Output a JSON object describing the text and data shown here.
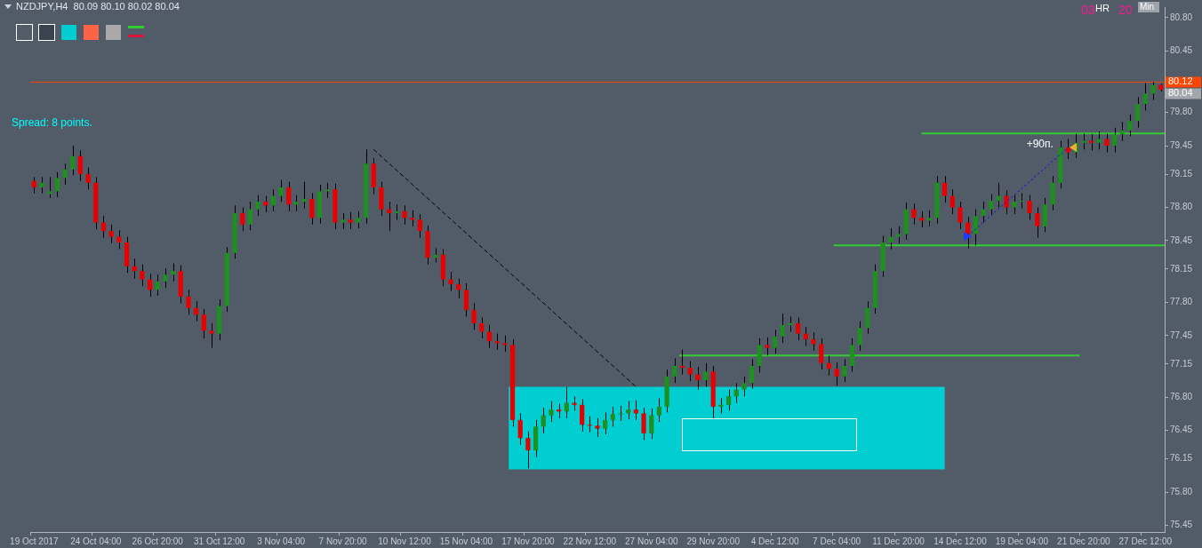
{
  "chart_data": {
    "type": "candlestick",
    "title": "NZDJPY,H4  80.09 80.10 80.02 80.04",
    "categories": [
      "19 Oct 2017",
      null,
      null,
      null,
      null,
      null,
      null,
      null,
      "24 Oct 04:00",
      null,
      null,
      null,
      null,
      null,
      null,
      null,
      "26 Oct 20:00",
      null,
      null,
      null,
      null,
      null,
      null,
      null,
      "31 Oct 12:00",
      null,
      null,
      null,
      null,
      null,
      null,
      null,
      "3 Nov 04:00",
      null,
      null,
      null,
      null,
      null,
      null,
      null,
      "7 Nov 20:00",
      null,
      null,
      null,
      null,
      null,
      null,
      null,
      "10 Nov 12:00",
      null,
      null,
      null,
      null,
      null,
      null,
      null,
      "15 Nov 04:00",
      null,
      null,
      null,
      null,
      null,
      null,
      null,
      "17 Nov 20:00",
      null,
      null,
      null,
      null,
      null,
      null,
      null,
      "22 Nov 12:00",
      null,
      null,
      null,
      null,
      null,
      null,
      null,
      "27 Nov 04:00",
      null,
      null,
      null,
      null,
      null,
      null,
      null,
      "29 Nov 20:00",
      null,
      null,
      null,
      null,
      null,
      null,
      null,
      "4 Dec 12:00",
      null,
      null,
      null,
      null,
      null,
      null,
      null,
      "7 Dec 04:00",
      null,
      null,
      null,
      null,
      null,
      null,
      null,
      "11 Dec 20:00",
      null,
      null,
      null,
      null,
      null,
      null,
      null,
      "14 Dec 12:00",
      null,
      null,
      null,
      null,
      null,
      null,
      null,
      "19 Dec 04:00",
      null,
      null,
      null,
      null,
      null,
      null,
      null,
      "21 Dec 20:00",
      null,
      null,
      null,
      null,
      null,
      null,
      null,
      "27 Dec 12:00",
      null,
      null
    ],
    "ohlc": [
      [
        79.08,
        79.12,
        78.95,
        79.01
      ],
      [
        79.01,
        79.12,
        78.95,
        79.06
      ],
      [
        78.94,
        79.12,
        78.9,
        78.97
      ],
      [
        78.97,
        79.17,
        78.91,
        79.11
      ],
      [
        79.11,
        79.26,
        79.04,
        79.2
      ],
      [
        79.2,
        79.45,
        79.14,
        79.34
      ],
      [
        79.34,
        79.4,
        79.08,
        79.15
      ],
      [
        79.15,
        79.22,
        78.99,
        79.06
      ],
      [
        79.06,
        79.12,
        78.57,
        78.64
      ],
      [
        78.64,
        78.71,
        78.48,
        78.55
      ],
      [
        78.55,
        78.62,
        78.42,
        78.49
      ],
      [
        78.49,
        78.56,
        78.36,
        78.43
      ],
      [
        78.43,
        78.49,
        78.11,
        78.18
      ],
      [
        78.18,
        78.26,
        78.05,
        78.13
      ],
      [
        78.13,
        78.2,
        77.97,
        78.04
      ],
      [
        78.04,
        78.1,
        77.86,
        77.93
      ],
      [
        77.93,
        78.09,
        77.87,
        78.02
      ],
      [
        78.02,
        78.16,
        77.95,
        78.09
      ],
      [
        78.09,
        78.21,
        78.02,
        78.13
      ],
      [
        78.13,
        78.19,
        77.79,
        77.86
      ],
      [
        77.86,
        77.93,
        77.67,
        77.74
      ],
      [
        77.74,
        77.81,
        77.6,
        77.67
      ],
      [
        77.67,
        77.73,
        77.42,
        77.5
      ],
      [
        77.5,
        77.58,
        77.32,
        77.47
      ],
      [
        77.47,
        77.83,
        77.4,
        77.76
      ],
      [
        77.76,
        78.38,
        77.7,
        78.32
      ],
      [
        78.32,
        78.82,
        78.26,
        78.74
      ],
      [
        78.74,
        78.8,
        78.55,
        78.62
      ],
      [
        78.62,
        78.86,
        78.56,
        78.78
      ],
      [
        78.78,
        78.93,
        78.71,
        78.86
      ],
      [
        78.86,
        78.92,
        78.75,
        78.82
      ],
      [
        78.82,
        78.99,
        78.76,
        78.92
      ],
      [
        78.92,
        79.09,
        78.86,
        79.01
      ],
      [
        79.01,
        79.07,
        78.76,
        78.83
      ],
      [
        78.83,
        78.93,
        78.76,
        78.86
      ],
      [
        78.86,
        79.07,
        78.79,
        78.89
      ],
      [
        78.89,
        78.95,
        78.62,
        78.69
      ],
      [
        78.69,
        79.04,
        78.63,
        78.97
      ],
      [
        78.97,
        79.06,
        78.9,
        78.99
      ],
      [
        78.99,
        79.05,
        78.57,
        78.64
      ],
      [
        78.64,
        78.74,
        78.57,
        78.67
      ],
      [
        78.67,
        78.75,
        78.57,
        78.64
      ],
      [
        78.64,
        78.76,
        78.58,
        78.69
      ],
      [
        78.69,
        79.41,
        78.63,
        79.26
      ],
      [
        79.26,
        79.32,
        78.94,
        79.01
      ],
      [
        79.01,
        79.07,
        78.71,
        78.78
      ],
      [
        78.78,
        78.86,
        78.55,
        78.74
      ],
      [
        78.74,
        78.83,
        78.67,
        78.76
      ],
      [
        78.76,
        78.82,
        78.62,
        78.69
      ],
      [
        78.69,
        78.77,
        78.6,
        78.67
      ],
      [
        78.67,
        78.73,
        78.48,
        78.55
      ],
      [
        78.55,
        78.61,
        78.2,
        78.27
      ],
      [
        78.27,
        78.37,
        78.22,
        78.3
      ],
      [
        78.3,
        78.36,
        77.97,
        78.04
      ],
      [
        78.04,
        78.12,
        77.92,
        77.99
      ],
      [
        77.99,
        78.05,
        77.84,
        77.93
      ],
      [
        77.93,
        78.0,
        77.65,
        77.72
      ],
      [
        77.72,
        77.79,
        77.51,
        77.58
      ],
      [
        77.58,
        77.64,
        77.42,
        77.49
      ],
      [
        77.49,
        77.56,
        77.32,
        77.39
      ],
      [
        77.39,
        77.47,
        77.3,
        77.37
      ],
      [
        77.37,
        77.45,
        77.28,
        77.35
      ],
      [
        77.35,
        77.41,
        76.49,
        76.56
      ],
      [
        76.56,
        76.63,
        76.3,
        76.37
      ],
      [
        76.37,
        76.44,
        76.05,
        76.24
      ],
      [
        76.24,
        76.56,
        76.17,
        76.49
      ],
      [
        76.49,
        76.69,
        76.42,
        76.61
      ],
      [
        76.61,
        76.76,
        76.54,
        76.67
      ],
      [
        76.67,
        76.73,
        76.58,
        76.65
      ],
      [
        76.65,
        76.91,
        76.58,
        76.74
      ],
      [
        76.74,
        76.81,
        76.66,
        76.72
      ],
      [
        76.72,
        76.78,
        76.44,
        76.51
      ],
      [
        76.51,
        76.6,
        76.43,
        76.5
      ],
      [
        76.5,
        76.58,
        76.38,
        76.47
      ],
      [
        76.47,
        76.64,
        76.41,
        76.56
      ],
      [
        76.56,
        76.7,
        76.49,
        76.62
      ],
      [
        76.62,
        76.71,
        76.55,
        76.63
      ],
      [
        76.63,
        76.76,
        76.57,
        76.67
      ],
      [
        76.67,
        76.77,
        76.56,
        76.63
      ],
      [
        76.63,
        76.69,
        76.35,
        76.42
      ],
      [
        76.42,
        76.68,
        76.36,
        76.61
      ],
      [
        76.61,
        76.79,
        76.54,
        76.7
      ],
      [
        76.7,
        77.09,
        76.64,
        77.02
      ],
      [
        77.02,
        77.21,
        76.95,
        77.13
      ],
      [
        77.13,
        77.3,
        77.04,
        77.11
      ],
      [
        77.11,
        77.18,
        76.97,
        77.04
      ],
      [
        77.04,
        77.12,
        76.88,
        76.98
      ],
      [
        76.98,
        77.16,
        76.91,
        77.07
      ],
      [
        77.07,
        77.13,
        76.58,
        76.7
      ],
      [
        76.7,
        76.79,
        76.63,
        76.72
      ],
      [
        76.72,
        76.88,
        76.66,
        76.81
      ],
      [
        76.81,
        76.95,
        76.74,
        76.88
      ],
      [
        76.88,
        77.02,
        76.81,
        76.95
      ],
      [
        76.95,
        77.2,
        76.89,
        77.13
      ],
      [
        77.13,
        77.42,
        77.06,
        77.35
      ],
      [
        77.35,
        77.43,
        77.24,
        77.32
      ],
      [
        77.32,
        77.51,
        77.26,
        77.44
      ],
      [
        77.44,
        77.68,
        77.37,
        77.56
      ],
      [
        77.56,
        77.65,
        77.49,
        77.58
      ],
      [
        77.58,
        77.64,
        77.4,
        77.47
      ],
      [
        77.47,
        77.54,
        77.34,
        77.41
      ],
      [
        77.41,
        77.48,
        77.29,
        77.36
      ],
      [
        77.36,
        77.42,
        77.09,
        77.16
      ],
      [
        77.16,
        77.24,
        77.03,
        77.1
      ],
      [
        77.1,
        77.17,
        76.92,
        77.02
      ],
      [
        77.02,
        77.2,
        76.96,
        77.13
      ],
      [
        77.13,
        77.42,
        77.07,
        77.35
      ],
      [
        77.35,
        77.6,
        77.29,
        77.53
      ],
      [
        77.53,
        77.81,
        77.47,
        77.74
      ],
      [
        77.74,
        78.2,
        77.68,
        78.13
      ],
      [
        78.13,
        78.5,
        78.07,
        78.43
      ],
      [
        78.43,
        78.58,
        78.36,
        78.49
      ],
      [
        78.49,
        78.6,
        78.42,
        78.52
      ],
      [
        78.52,
        78.85,
        78.46,
        78.78
      ],
      [
        78.78,
        78.84,
        78.62,
        78.69
      ],
      [
        78.69,
        78.76,
        78.59,
        78.66
      ],
      [
        78.66,
        78.77,
        78.6,
        78.69
      ],
      [
        78.69,
        79.13,
        78.63,
        79.06
      ],
      [
        79.06,
        79.13,
        78.85,
        78.92
      ],
      [
        78.92,
        78.99,
        78.73,
        78.8
      ],
      [
        78.8,
        78.86,
        78.57,
        78.64
      ],
      [
        78.64,
        78.7,
        78.37,
        78.52
      ],
      [
        78.52,
        78.78,
        78.4,
        78.71
      ],
      [
        78.71,
        78.86,
        78.64,
        78.78
      ],
      [
        78.78,
        78.94,
        78.72,
        78.87
      ],
      [
        78.87,
        79.06,
        78.8,
        78.92
      ],
      [
        78.92,
        78.98,
        78.73,
        78.8
      ],
      [
        78.8,
        78.93,
        78.73,
        78.86
      ],
      [
        78.86,
        78.95,
        78.79,
        78.87
      ],
      [
        78.87,
        78.93,
        78.67,
        78.74
      ],
      [
        78.74,
        78.8,
        78.48,
        78.6
      ],
      [
        78.6,
        78.9,
        78.54,
        78.83
      ],
      [
        78.83,
        79.13,
        78.77,
        79.06
      ],
      [
        79.06,
        79.5,
        79.0,
        79.43
      ],
      [
        79.43,
        79.52,
        79.31,
        79.38
      ],
      [
        79.38,
        79.58,
        79.32,
        79.48
      ],
      [
        79.48,
        79.58,
        79.41,
        79.5
      ],
      [
        79.5,
        79.57,
        79.4,
        79.48
      ],
      [
        79.48,
        79.6,
        79.41,
        79.52
      ],
      [
        79.52,
        79.58,
        79.38,
        79.45
      ],
      [
        79.45,
        79.64,
        79.38,
        79.57
      ],
      [
        79.57,
        79.7,
        79.5,
        79.61
      ],
      [
        79.61,
        79.78,
        79.55,
        79.71
      ],
      [
        79.71,
        79.96,
        79.64,
        79.89
      ],
      [
        79.89,
        80.11,
        79.82,
        80.0
      ],
      [
        80.0,
        80.12,
        79.93,
        80.09
      ],
      [
        80.09,
        80.1,
        80.02,
        80.04
      ]
    ],
    "series": [
      {
        "type": "line",
        "color": "#000000",
        "line_style": "dashed",
        "values": [
          null,
          null,
          null,
          null,
          null,
          null,
          null,
          null,
          null,
          null,
          null,
          null,
          null,
          null,
          null,
          null,
          null,
          null,
          null,
          null,
          null,
          null,
          null,
          null,
          null,
          null,
          null,
          null,
          null,
          null,
          null,
          null,
          null,
          null,
          null,
          null,
          null,
          null,
          null,
          null,
          null,
          null,
          null,
          null,
          79.41,
          null,
          null,
          null,
          null,
          null,
          null,
          null,
          null,
          null,
          null,
          null,
          null,
          null,
          null,
          null,
          null,
          null,
          null,
          null,
          null,
          null,
          null,
          null,
          null,
          null,
          null,
          null,
          null,
          null,
          null,
          null,
          null,
          null,
          76.91,
          null,
          null,
          null,
          null,
          null,
          null,
          null,
          null,
          null,
          null,
          null,
          null,
          null,
          null,
          null,
          null,
          null,
          null,
          null,
          null,
          null,
          null,
          null,
          null,
          null,
          null,
          null,
          null,
          null,
          null,
          null,
          null,
          null,
          null,
          null,
          null,
          null,
          null,
          null,
          null,
          null,
          null,
          null,
          null,
          null,
          null,
          null,
          null,
          null,
          null,
          null,
          null,
          null,
          null,
          null,
          null,
          null,
          null,
          null,
          null,
          null,
          null,
          null,
          null,
          null,
          null,
          null,
          null
        ]
      },
      {
        "type": "line",
        "color": "#0000ff",
        "line_style": "dotted",
        "values": [
          null,
          null,
          null,
          null,
          null,
          null,
          null,
          null,
          null,
          null,
          null,
          null,
          null,
          null,
          null,
          null,
          null,
          null,
          null,
          null,
          null,
          null,
          null,
          null,
          null,
          null,
          null,
          null,
          null,
          null,
          null,
          null,
          null,
          null,
          null,
          null,
          null,
          null,
          null,
          null,
          null,
          null,
          null,
          null,
          null,
          null,
          null,
          null,
          null,
          null,
          null,
          null,
          null,
          null,
          null,
          null,
          null,
          null,
          null,
          null,
          null,
          null,
          null,
          null,
          null,
          null,
          null,
          null,
          null,
          null,
          null,
          null,
          null,
          null,
          null,
          null,
          null,
          null,
          null,
          null,
          null,
          null,
          null,
          null,
          null,
          null,
          null,
          null,
          null,
          null,
          null,
          null,
          null,
          null,
          null,
          null,
          null,
          null,
          null,
          null,
          null,
          null,
          null,
          null,
          null,
          null,
          null,
          null,
          null,
          null,
          null,
          null,
          null,
          null,
          null,
          null,
          null,
          null,
          null,
          null,
          null,
          78.5,
          null,
          null,
          null,
          null,
          null,
          null,
          null,
          null,
          null,
          null,
          null,
          null,
          79.43,
          null,
          null,
          null,
          null,
          null,
          null,
          null,
          null,
          null,
          null,
          null,
          null
        ]
      }
    ],
    "ylim": [
      75.38,
      80.91
    ],
    "yticks": [
      {
        "value": 80.8,
        "label": "80.80"
      },
      80.45,
      {
        "value": 79.8,
        "label": "79.80"
      },
      79.45,
      79.15,
      {
        "value": 78.8,
        "label": "78.80"
      },
      78.45,
      78.15,
      {
        "value": 77.8,
        "label": "77.80"
      },
      77.45,
      77.15,
      {
        "value": 76.8,
        "label": "76.80"
      },
      76.45,
      76.15,
      {
        "value": 75.8,
        "label": "75.80"
      },
      75.45
    ],
    "ref_lines": [
      {
        "axis": "y",
        "value": 80.12,
        "label": "80.12",
        "color": "#ff4500"
      },
      {
        "axis": "y",
        "value": 79.58,
        "color": "#32cd32"
      },
      {
        "axis": "y",
        "value": 78.4,
        "color": "#32cd32"
      },
      {
        "axis": "y",
        "value": 77.24,
        "color": "#32cd32"
      }
    ],
    "bands": [
      {
        "axis": "y",
        "from": 76.04,
        "to": 76.91,
        "color": "#00ced1"
      }
    ],
    "annotations": [
      "Spread: 8 points.",
      "+90п.",
      "03",
      "HR",
      "20",
      "Min",
      "80.04"
    ]
  }
}
